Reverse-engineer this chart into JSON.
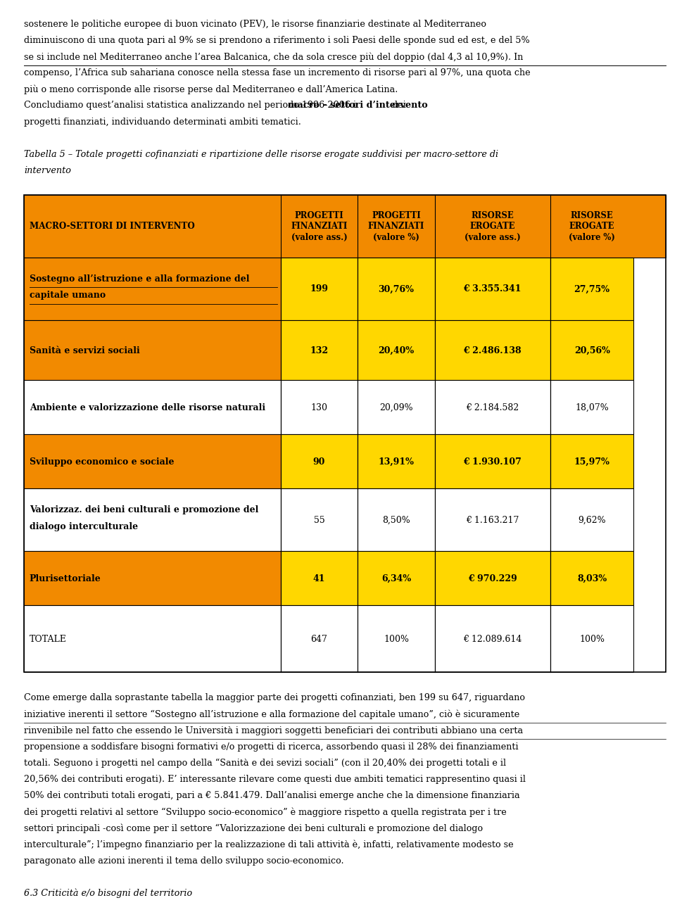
{
  "top_text": "sostenere le politiche europee di buon vicinato (PEV), le risorse finanziarie destinate al Mediterraneo diminuiscono di una quota pari al 9% se si prendono a riferimento i soli Paesi delle sponde sud ed est, e del 5% se si include nel Mediterraneo anche l’area Balcanica, che da sola cresce più del doppio (dal 4,3 al 10,9%). In compenso, l’Africa sub sahariana conosce nella stessa fase un incremento di risorse pari al 97%, una quota che più o meno corrisponde alle risorse perse dal Mediterraneo e dall’America Latina.\nConcludiomo quest’analisi statistica analizzando nel periodo 1996-2006 i macro – settori d’intervento dei progetti finanziati, individuando determinati ambiti tematici.",
  "table_caption_line1": "Tabella 5 – Totale progetti cofinanziati e ripartizione delle risorse erogate suddivisi per macro-settore di",
  "table_caption_line2": "intervento",
  "header_bg": "#F28A00",
  "orange_row_bg": "#F28A00",
  "yellow_row_bg": "#FFD700",
  "white_bg": "#FFFFFF",
  "col_headers": [
    "MACRO-SETTORI DI INTERVENTO",
    "PROGETTI\nFINANZIATI\n(valore ass.)",
    "PROGETTI\nFINANZIATI\n(valore %)",
    "RISORSE\nEROGATE\n(valore ass.)",
    "RISORSE\nEROGATE\n(valore %)"
  ],
  "rows": [
    {
      "label": "Sostegno all’istruzione e alla formazione del\ncapitale umano",
      "label_underline": true,
      "label_bold": true,
      "v1": "199",
      "v2": "30,76%",
      "v3": "€ 3.355.341",
      "v4": "27,75%",
      "row_bg": "#F28A00",
      "data_bg": "#FFD700"
    },
    {
      "label": "Sanità e servizi sociali",
      "label_underline": false,
      "label_bold": true,
      "v1": "132",
      "v2": "20,40%",
      "v3": "€ 2.486.138",
      "v4": "20,56%",
      "row_bg": "#F28A00",
      "data_bg": "#FFD700"
    },
    {
      "label": "Ambiente e valorizzazione delle risorse naturali",
      "label_underline": false,
      "label_bold": true,
      "v1": "130",
      "v2": "20,09%",
      "v3": "€ 2.184.582",
      "v4": "18,07%",
      "row_bg": "#FFFFFF",
      "data_bg": "#FFFFFF"
    },
    {
      "label": "Sviluppo economico e sociale",
      "label_underline": false,
      "label_bold": true,
      "v1": "90",
      "v2": "13,91%",
      "v3": "€ 1.930.107",
      "v4": "15,97%",
      "row_bg": "#F28A00",
      "data_bg": "#FFD700"
    },
    {
      "label": "Valorizzaz. dei beni culturali e promozione del\ndialogo interculturale",
      "label_underline": false,
      "label_bold": true,
      "v1": "55",
      "v2": "8,50%",
      "v3": "€ 1.163.217",
      "v4": "9,62%",
      "row_bg": "#FFFFFF",
      "data_bg": "#FFFFFF"
    },
    {
      "label": "Plurisettoriale",
      "label_underline": false,
      "label_bold": true,
      "v1": "41",
      "v2": "6,34%",
      "v3": "€ 970.229",
      "v4": "8,03%",
      "row_bg": "#F28A00",
      "data_bg": "#FFD700"
    },
    {
      "label": "TOTALE",
      "label_underline": false,
      "label_bold": false,
      "v1": "647",
      "v2": "100%",
      "v3": "€ 12.089.614",
      "v4": "100%",
      "row_bg": "#FFFFFF",
      "data_bg": "#FFFFFF"
    }
  ],
  "bottom_lines": [
    "Come emerge dalla soprastante tabella la maggior parte dei progetti cofinanziati, ben 199 su 647, riguardano",
    "iniziative inerenti il settore “Sostegno all’istruzione e alla formazione del capitale umano”, ciò è sicuramente",
    "rinvenibile nel fatto che essendo le Università i maggiori soggetti beneficiari dei contributi abbiano una certa",
    "propensione a soddisfare bisogni formativi e/o progetti di ricerca, assorbendo quasi il 28% dei finanziamenti",
    "totali. Seguono i progetti nel campo della “Sanità e dei sevizi sociali” (con il 20,40% dei progetti totali e il",
    "20,56% dei contributi erogati). E’ interessante rilevare come questi due ambiti tematici rappresentino quasi il",
    "50% dei contributi totali erogati, pari a € 5.841.479. Dall’analisi emerge anche che la dimensione finanziaria",
    "dei progetti relativi al settore “Sviluppo socio-economico” è maggiore rispetto a quella registrata per i tre",
    "settori principali ­così come per il settore “Valorizzazione dei beni culturali e promozione del dialogo",
    "interculturale”; l’impegno finanziario per la realizzazione di tali attività è, infatti, relativamente modesto se",
    "paragonato alle azioni inerenti il tema dello sviluppo socio-economico."
  ],
  "bottom_underline": [
    false,
    true,
    true,
    false,
    false,
    false,
    false,
    false,
    false,
    false,
    false
  ],
  "footer_heading": "6.3 Criticità e/o bisogni del territorio",
  "page_bg": "#FFFFFF",
  "border_color": "#000000",
  "text_color": "#000000"
}
